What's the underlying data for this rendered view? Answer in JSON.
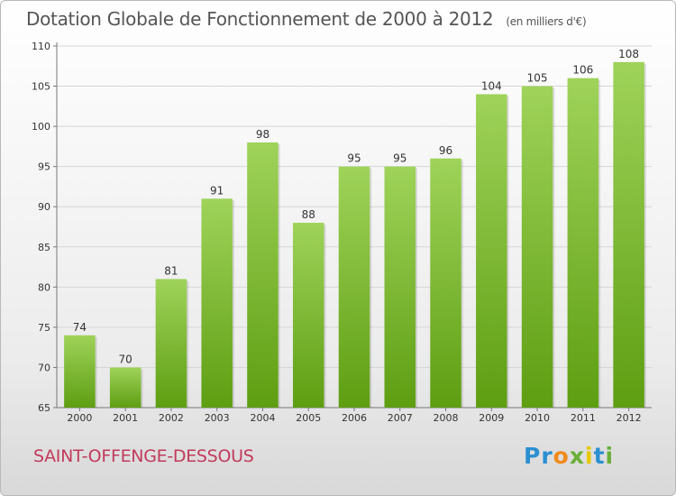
{
  "title": "Dotation Globale de Fonctionnement de 2000 à 2012",
  "subtitle": "(en milliers d'€)",
  "commune": "SAINT-OFFENGE-DESSOUS",
  "logo": {
    "text": "Proxiti",
    "colors": [
      "#2a8fd0",
      "#2a8fd0",
      "#f08a1c",
      "#6ab03a",
      "#e8c800",
      "#2a8fd0",
      "#6ab03a"
    ]
  },
  "colors": {
    "bar_top": "#9fd35a",
    "bar_bottom": "#5e9e12",
    "title": "#555555",
    "commune": "#c23a5c"
  },
  "chart_data": {
    "type": "bar",
    "title": "Dotation Globale de Fonctionnement de 2000 à 2012",
    "subtitle": "(en milliers d'€)",
    "xlabel": "",
    "ylabel": "",
    "categories": [
      "2000",
      "2001",
      "2002",
      "2003",
      "2004",
      "2005",
      "2006",
      "2007",
      "2008",
      "2009",
      "2010",
      "2011",
      "2012"
    ],
    "values": [
      74,
      70,
      81,
      91,
      98,
      88,
      95,
      95,
      96,
      104,
      105,
      106,
      108
    ],
    "ylim": [
      65,
      110
    ],
    "yticks": [
      65,
      70,
      75,
      80,
      85,
      90,
      95,
      100,
      105,
      110
    ],
    "grid": true,
    "data_labels": true
  }
}
